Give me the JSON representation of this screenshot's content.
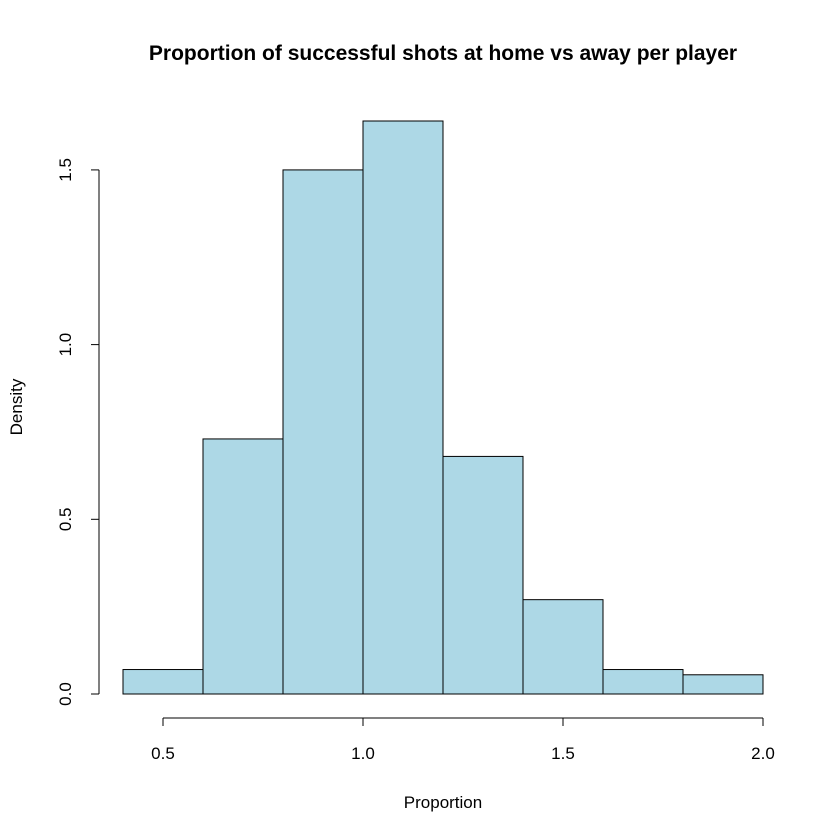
{
  "chart_data": {
    "type": "bar",
    "title": "Proportion of successful shots at home vs away per player",
    "xlabel": "Proportion",
    "ylabel": "Density",
    "bin_edges": [
      0.4,
      0.6,
      0.8,
      1.0,
      1.2,
      1.4,
      1.6,
      1.8,
      2.0
    ],
    "values": [
      0.07,
      0.73,
      1.5,
      1.64,
      0.68,
      0.27,
      0.07,
      0.055
    ],
    "xlim": [
      0.4,
      2.0
    ],
    "ylim": [
      0,
      1.64
    ],
    "x_ticks": [
      0.5,
      1.0,
      1.5,
      2.0
    ],
    "x_tick_labels": [
      "0.5",
      "1.0",
      "1.5",
      "2.0"
    ],
    "y_ticks": [
      0.0,
      0.5,
      1.0,
      1.5
    ],
    "y_tick_labels": [
      "0.0",
      "0.5",
      "1.0",
      "1.5"
    ],
    "bar_color": "#add8e6",
    "grid": false,
    "legend": "none"
  }
}
